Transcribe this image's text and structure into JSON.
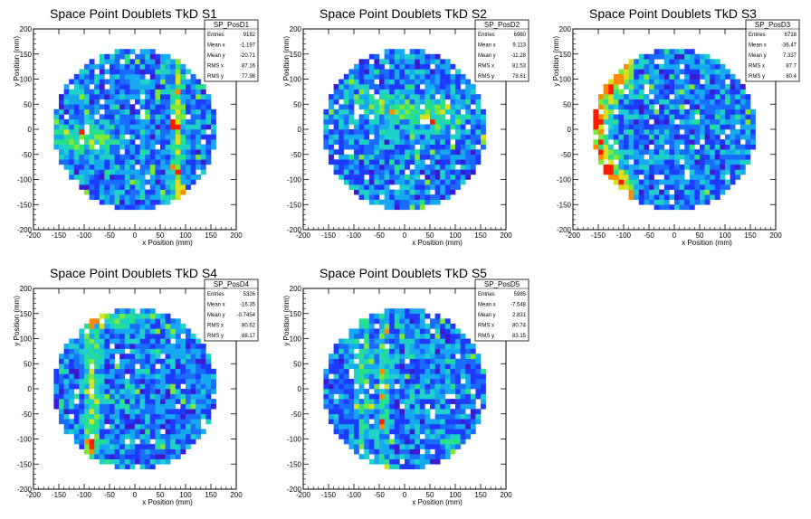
{
  "panels": [
    {
      "title": "Space Point Doublets TkD S1",
      "stats": {
        "name": "SP_PosD1",
        "entries": "9182",
        "mean_x": "-1.197",
        "mean_y": "-20.71",
        "rms_x": "87.16",
        "rms_y": "77.98"
      }
    },
    {
      "title": "Space Point Doublets TkD S2",
      "stats": {
        "name": "SP_PosD2",
        "entries": "6960",
        "mean_x": "9.113",
        "mean_y": "-11.28",
        "rms_x": "81.53",
        "rms_y": "78.61"
      }
    },
    {
      "title": "Space Point Doublets TkD S3",
      "stats": {
        "name": "SP_PosD3",
        "entries": "6718",
        "mean_x": "-36.47",
        "mean_y": "7.337",
        "rms_x": "87.7",
        "rms_y": "80.4"
      }
    },
    {
      "title": "Space Point Doublets TkD S4",
      "stats": {
        "name": "SP_PosD4",
        "entries": "5326",
        "mean_x": "-16.35",
        "mean_y": "-0.7454",
        "rms_x": "80.62",
        "rms_y": "88.17"
      }
    },
    {
      "title": "Space Point Doublets TkD S5",
      "stats": {
        "name": "SP_PosD5",
        "entries": "5985",
        "mean_x": "-7.548",
        "mean_y": "2.831",
        "rms_x": "80.74",
        "rms_y": "83.15"
      }
    }
  ],
  "stat_labels": {
    "entries": "Entries",
    "mean_x": "Mean x",
    "mean_y": "Mean y",
    "rms_x": "RMS x",
    "rms_y": "RMS y"
  },
  "colors": {
    "palette": [
      "#5a0c8c",
      "#3a1bd0",
      "#1f3aff",
      "#1a6cff",
      "#16a8f0",
      "#1ed0c8",
      "#27e08c",
      "#7ee83a",
      "#d8e020",
      "#ff8a00",
      "#ff1a00"
    ],
    "frame": "#000000",
    "background": "#ffffff"
  },
  "chart_data": [
    {
      "type": "heatmap",
      "title": "Space Point Doublets TkD S1",
      "xlabel": "x Position (mm)",
      "ylabel": "y Position (mm)",
      "xlim": [
        -200,
        200
      ],
      "ylim": [
        -200,
        200
      ],
      "xticks": [
        -200,
        -150,
        -100,
        -50,
        0,
        50,
        100,
        150,
        200
      ],
      "yticks": [
        -200,
        -150,
        -100,
        -50,
        0,
        50,
        100,
        150,
        200
      ],
      "bin_width_mm": 10,
      "coverage_radius_mm": 160,
      "entries": 9182,
      "mean_x": -1.197,
      "mean_y": -20.71,
      "rms_x": 87.16,
      "rms_y": 77.98,
      "features": [
        "vertical hot band near x=75 to x=95",
        "hot cells near (75,10) and (95,-120)",
        "green band across left side near y=-20"
      ]
    },
    {
      "type": "heatmap",
      "title": "Space Point Doublets TkD S2",
      "xlabel": "x Position (mm)",
      "ylabel": "y Position (mm)",
      "xlim": [
        -200,
        200
      ],
      "ylim": [
        -200,
        200
      ],
      "xticks": [
        -200,
        -150,
        -100,
        -50,
        0,
        50,
        100,
        150,
        200
      ],
      "yticks": [
        -200,
        -150,
        -100,
        -50,
        0,
        50,
        100,
        150,
        200
      ],
      "bin_width_mm": 10,
      "coverage_radius_mm": 160,
      "entries": 6960,
      "mean_x": 9.113,
      "mean_y": -11.28,
      "rms_x": 81.53,
      "rms_y": 78.61,
      "features": [
        "diagonal green band from (-30,60) to (70,20)",
        "hot cell near (155,-20)"
      ]
    },
    {
      "type": "heatmap",
      "title": "Space Point Doublets TkD S3",
      "xlabel": "x Position (mm)",
      "ylabel": "y Position (mm)",
      "xlim": [
        -200,
        200
      ],
      "ylim": [
        -200,
        200
      ],
      "xticks": [
        -200,
        -150,
        -100,
        -50,
        0,
        50,
        100,
        150,
        200
      ],
      "yticks": [
        -200,
        -150,
        -100,
        -50,
        0,
        50,
        100,
        150,
        200
      ],
      "bin_width_mm": 10,
      "coverage_radius_mm": 160,
      "entries": 6718,
      "mean_x": -36.47,
      "mean_y": 7.337,
      "rms_x": 87.7,
      "rms_y": 80.4,
      "features": [
        "hot arc along left edge x=-160 to x=-120",
        "red cells near (-155,20) and (-130,-80)"
      ]
    },
    {
      "type": "heatmap",
      "title": "Space Point Doublets TkD S4",
      "xlabel": "x Position (mm)",
      "ylabel": "y Position (mm)",
      "xlim": [
        -200,
        200
      ],
      "ylim": [
        -200,
        200
      ],
      "xticks": [
        -200,
        -150,
        -100,
        -50,
        0,
        50,
        100,
        150,
        200
      ],
      "yticks": [
        -200,
        -150,
        -100,
        -50,
        0,
        50,
        100,
        150,
        200
      ],
      "bin_width_mm": 10,
      "coverage_radius_mm": 160,
      "entries": 5326,
      "mean_x": -16.35,
      "mean_y": -0.7454,
      "rms_x": 80.62,
      "rms_y": 88.17,
      "features": [
        "vertical green band near x=-85",
        "red cells near (-85,-110)",
        "green arc near top edge"
      ]
    },
    {
      "type": "heatmap",
      "title": "Space Point Doublets TkD S5",
      "xlabel": "x Position (mm)",
      "ylabel": "y Position (mm)",
      "xlim": [
        -200,
        200
      ],
      "ylim": [
        -200,
        200
      ],
      "xticks": [
        -200,
        -150,
        -100,
        -50,
        0,
        50,
        100,
        150,
        200
      ],
      "yticks": [
        -200,
        -150,
        -100,
        -50,
        0,
        50,
        100,
        150,
        200
      ],
      "bin_width_mm": 10,
      "coverage_radius_mm": 160,
      "entries": 5985,
      "mean_x": -7.548,
      "mean_y": 2.831,
      "rms_x": 80.74,
      "rms_y": 83.15,
      "features": [
        "vertical green bands near x=-80 and x=-40",
        "yellow cell near (-45,-70)"
      ]
    }
  ]
}
